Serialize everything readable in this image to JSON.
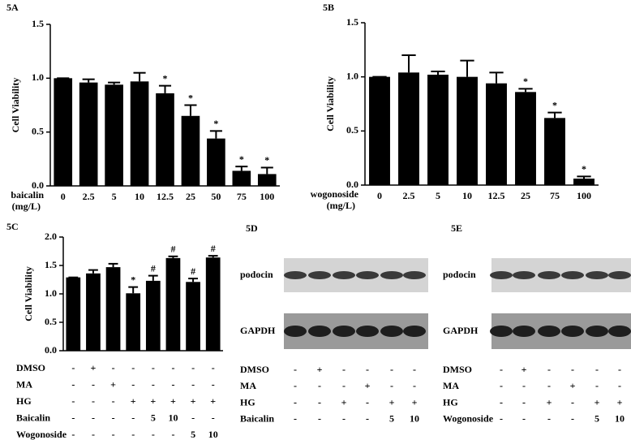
{
  "chart_data": [
    {
      "type": "bar",
      "title": "5A",
      "ylabel": "Cell Viability",
      "xlabel": "baicalin",
      "xunit": "(mg/L)",
      "categories": [
        "0",
        "2.5",
        "5",
        "10",
        "12.5",
        "25",
        "50",
        "75",
        "100"
      ],
      "values": [
        1.0,
        0.96,
        0.94,
        0.97,
        0.86,
        0.65,
        0.44,
        0.14,
        0.11
      ],
      "errors": [
        0,
        0.03,
        0.02,
        0.08,
        0.07,
        0.1,
        0.07,
        0.04,
        0.06
      ],
      "sig_labels": [
        null,
        null,
        null,
        null,
        "*",
        "*",
        "*",
        "*",
        "*"
      ],
      "color": "#000000",
      "ylim": [
        0,
        1.5
      ],
      "yticks": [
        {
          "value": 0,
          "label": "0.0"
        },
        0.5,
        {
          "value": 1,
          "label": "1.0"
        },
        1.5
      ]
    },
    {
      "type": "bar",
      "title": "5B",
      "ylabel": "Cell Viability",
      "xlabel": "wogonoside",
      "xunit": "(mg/L)",
      "categories": [
        "0",
        "2.5",
        "5",
        "10",
        "12.5",
        "25",
        "75",
        "100"
      ],
      "values": [
        1.0,
        1.04,
        1.02,
        1.0,
        0.94,
        0.86,
        0.62,
        0.06
      ],
      "errors": [
        0,
        0.16,
        0.03,
        0.15,
        0.1,
        0.03,
        0.05,
        0.02
      ],
      "sig_labels": [
        null,
        null,
        null,
        null,
        null,
        "*",
        "*",
        "*"
      ],
      "color": "#000000",
      "ylim": [
        0,
        1.5
      ],
      "yticks": [
        {
          "value": 0,
          "label": "0.0"
        },
        0.5,
        {
          "value": 1,
          "label": "1.0"
        },
        1.5
      ]
    },
    {
      "type": "bar",
      "title": "5C",
      "ylabel": "Cell Viability",
      "values": [
        1.29,
        1.36,
        1.47,
        1.01,
        1.23,
        1.63,
        1.21,
        1.64
      ],
      "errors": [
        0,
        0.06,
        0.06,
        0.11,
        0.09,
        0.03,
        0.06,
        0.03
      ],
      "sig_labels": [
        null,
        null,
        null,
        "*",
        "#",
        "#",
        "#",
        "#"
      ],
      "color": "#000000",
      "ylim": [
        0,
        2
      ],
      "yticks": [
        {
          "value": 0,
          "label": "0.0"
        },
        0.5,
        {
          "value": 1,
          "label": "1.0"
        },
        1.5,
        {
          "value": 2,
          "label": "2.0"
        }
      ],
      "treatments": [
        {
          "name": "DMSO",
          "marks": [
            "-",
            "+",
            "-",
            "-",
            "-",
            "-",
            "-",
            "-"
          ]
        },
        {
          "name": "MA",
          "marks": [
            "-",
            "-",
            "+",
            "-",
            "-",
            "-",
            "-",
            "-"
          ]
        },
        {
          "name": "HG",
          "marks": [
            "-",
            "-",
            "-",
            "+",
            "+",
            "+",
            "+",
            "+"
          ]
        },
        {
          "name": "Baicalin",
          "marks": [
            "-",
            "-",
            "-",
            "-",
            "5",
            "10",
            "-",
            "-"
          ]
        },
        {
          "name": "Wogonoside",
          "marks": [
            "-",
            "-",
            "-",
            "-",
            "-",
            "-",
            "5",
            "10"
          ]
        }
      ]
    }
  ],
  "blots": [
    {
      "title": "5D",
      "bands": [
        "podocin",
        "GAPDH"
      ],
      "treatments": [
        {
          "name": "DMSO",
          "marks": [
            "-",
            "+",
            "-",
            "-",
            "-",
            "-"
          ]
        },
        {
          "name": "MA",
          "marks": [
            "-",
            "-",
            "-",
            "+",
            "-",
            "-"
          ]
        },
        {
          "name": "HG",
          "marks": [
            "-",
            "-",
            "+",
            "-",
            "+",
            "+"
          ]
        },
        {
          "name": "Baicalin",
          "marks": [
            "-",
            "-",
            "-",
            "-",
            "5",
            "10"
          ]
        }
      ]
    },
    {
      "title": "5E",
      "bands": [
        "podocin",
        "GAPDH"
      ],
      "treatments": [
        {
          "name": "DMSO",
          "marks": [
            "-",
            "+",
            "-",
            "-",
            "-",
            "-"
          ]
        },
        {
          "name": "MA",
          "marks": [
            "-",
            "-",
            "-",
            "+",
            "-",
            "-"
          ]
        },
        {
          "name": "HG",
          "marks": [
            "-",
            "-",
            "+",
            "-",
            "+",
            "+"
          ]
        },
        {
          "name": "Wogonoside",
          "marks": [
            "-",
            "-",
            "-",
            "-",
            "5",
            "10"
          ]
        }
      ]
    }
  ]
}
